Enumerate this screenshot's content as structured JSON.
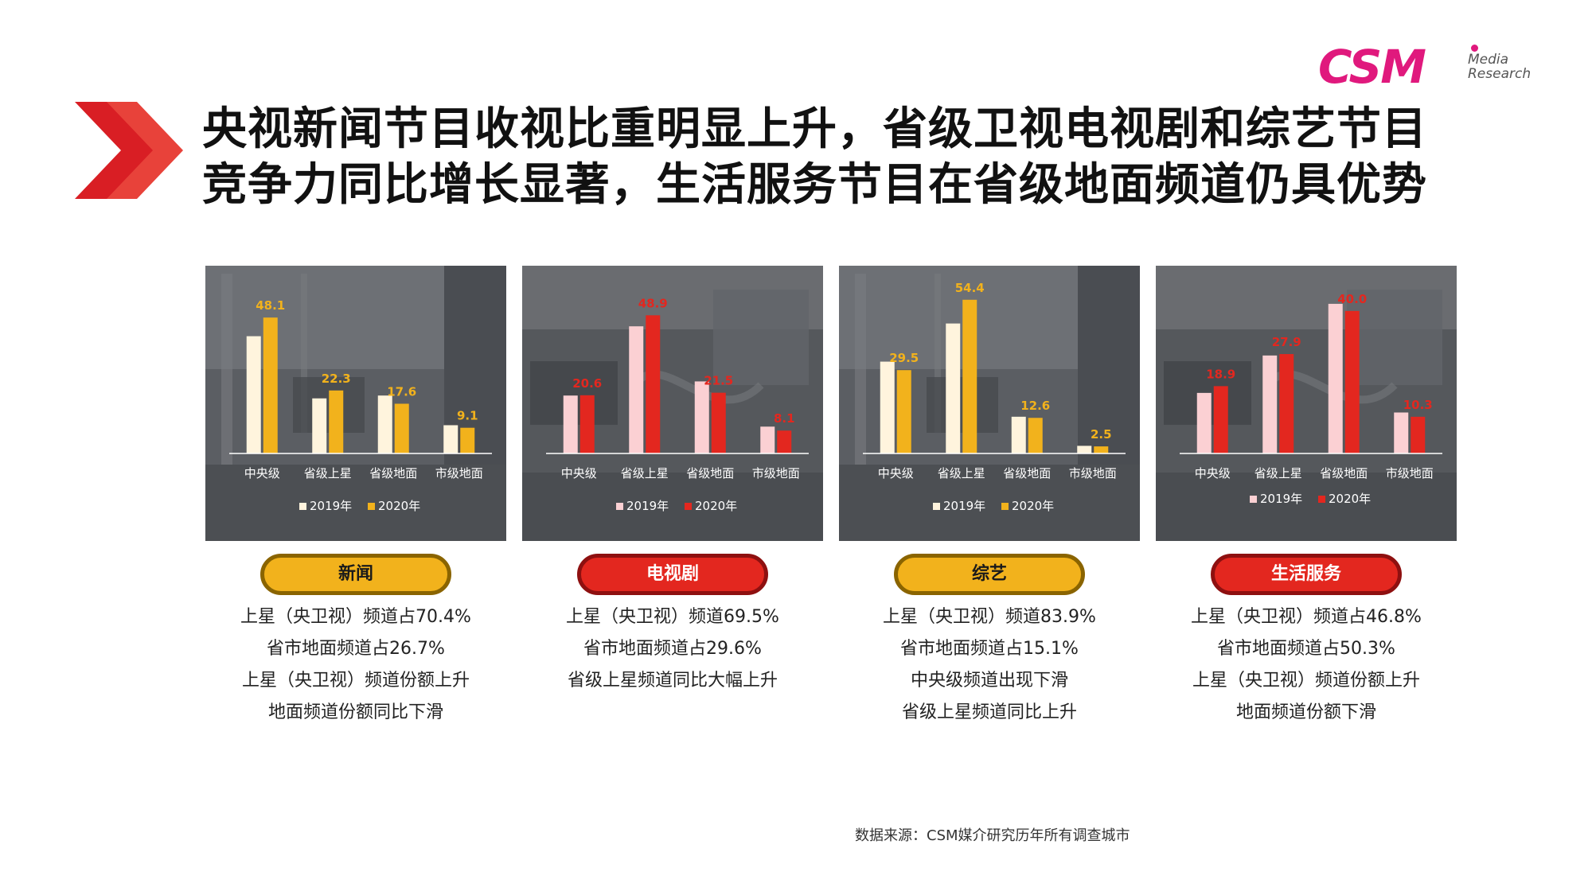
{
  "title": {
    "line1": "央视新闻节目收视比重明显上升，省级卫视电视剧和综艺节目",
    "line2": "竞争力同比增长显著，生活服务节目在省级地面频道仍具优势"
  },
  "logo": {
    "main": "CSM",
    "sub1": "Media",
    "sub2": "Research"
  },
  "panels": [
    {
      "label": "新闻",
      "pill_style": "gold",
      "descriptions": [
        "上星（央卫视）频道占70.4%",
        "省市地面频道占26.7%",
        "上星（央卫视）频道份额上升",
        "地面频道份额同比下滑"
      ]
    },
    {
      "label": "电视剧",
      "pill_style": "red",
      "descriptions": [
        "上星（央卫视）频道69.5%",
        "省市地面频道占29.6%",
        "省级上星频道同比大幅上升"
      ]
    },
    {
      "label": "综艺",
      "pill_style": "gold",
      "descriptions": [
        "上星（央卫视）频道83.9%",
        "省市地面频道占15.1%",
        "中央级频道出现下滑",
        "省级上星频道同比上升"
      ]
    },
    {
      "label": "生活服务",
      "pill_style": "red",
      "descriptions": [
        "上星（央卫视）频道占46.8%",
        "省市地面频道占50.3%",
        "上星（央卫视）频道份额上升",
        "地面频道份额下滑"
      ]
    }
  ],
  "chart_data": [
    {
      "type": "bar",
      "categories": [
        "中央级",
        "省级上星",
        "省级地面",
        "市级地面"
      ],
      "series": [
        {
          "name": "2019年",
          "values": [
            41.5,
            19.5,
            20.5,
            10.0
          ],
          "color": "#fff4dd"
        },
        {
          "name": "2020年",
          "values": [
            48.1,
            22.3,
            17.6,
            9.1
          ],
          "color": "#f2b21c"
        }
      ],
      "data_labels": [
        "48.1",
        "22.3",
        "17.6",
        "9.1"
      ],
      "label_color": "#f2b21c",
      "ylim": [
        0,
        58
      ],
      "legend_position": "bottom"
    },
    {
      "type": "bar",
      "categories": [
        "中央级",
        "省级上星",
        "省级地面",
        "市级地面"
      ],
      "series": [
        {
          "name": "2019年",
          "values": [
            20.5,
            45.0,
            25.5,
            9.5
          ],
          "color": "#fbd0d3"
        },
        {
          "name": "2020年",
          "values": [
            20.6,
            48.9,
            21.5,
            8.1
          ],
          "color": "#e3271f"
        }
      ],
      "data_labels": [
        "20.6",
        "48.9",
        "21.5",
        "8.1"
      ],
      "label_color": "#e3271f",
      "ylim": [
        0,
        58
      ],
      "legend_position": "bottom"
    },
    {
      "type": "bar",
      "categories": [
        "中央级",
        "省级上星",
        "省级地面",
        "市级地面"
      ],
      "series": [
        {
          "name": "2019年",
          "values": [
            32.5,
            46.0,
            13.0,
            2.7
          ],
          "color": "#fff4dd"
        },
        {
          "name": "2020年",
          "values": [
            29.5,
            54.4,
            12.6,
            2.5
          ],
          "color": "#f2b21c"
        }
      ],
      "data_labels": [
        "29.5",
        "54.4",
        "12.6",
        "2.5"
      ],
      "label_color": "#f2b21c",
      "ylim": [
        0,
        58
      ],
      "legend_position": "bottom"
    },
    {
      "type": "bar",
      "categories": [
        "中央级",
        "省级上星",
        "省级地面",
        "市级地面"
      ],
      "series": [
        {
          "name": "2019年",
          "values": [
            17.0,
            27.5,
            42.0,
            11.5
          ],
          "color": "#fbd0d3"
        },
        {
          "name": "2020年",
          "values": [
            18.9,
            27.9,
            40.0,
            10.3
          ],
          "color": "#e3271f"
        }
      ],
      "data_labels": [
        "18.9",
        "27.9",
        "40.0",
        "10.3"
      ],
      "label_color": "#e3271f",
      "ylim": [
        0,
        46
      ],
      "legend_position": "bottom"
    }
  ],
  "colors": {
    "gold": "#f2b21c",
    "red": "#e3271f",
    "brand_magenta": "#e0197d"
  },
  "source": "数据来源：CSM媒介研究历年所有调查城市"
}
